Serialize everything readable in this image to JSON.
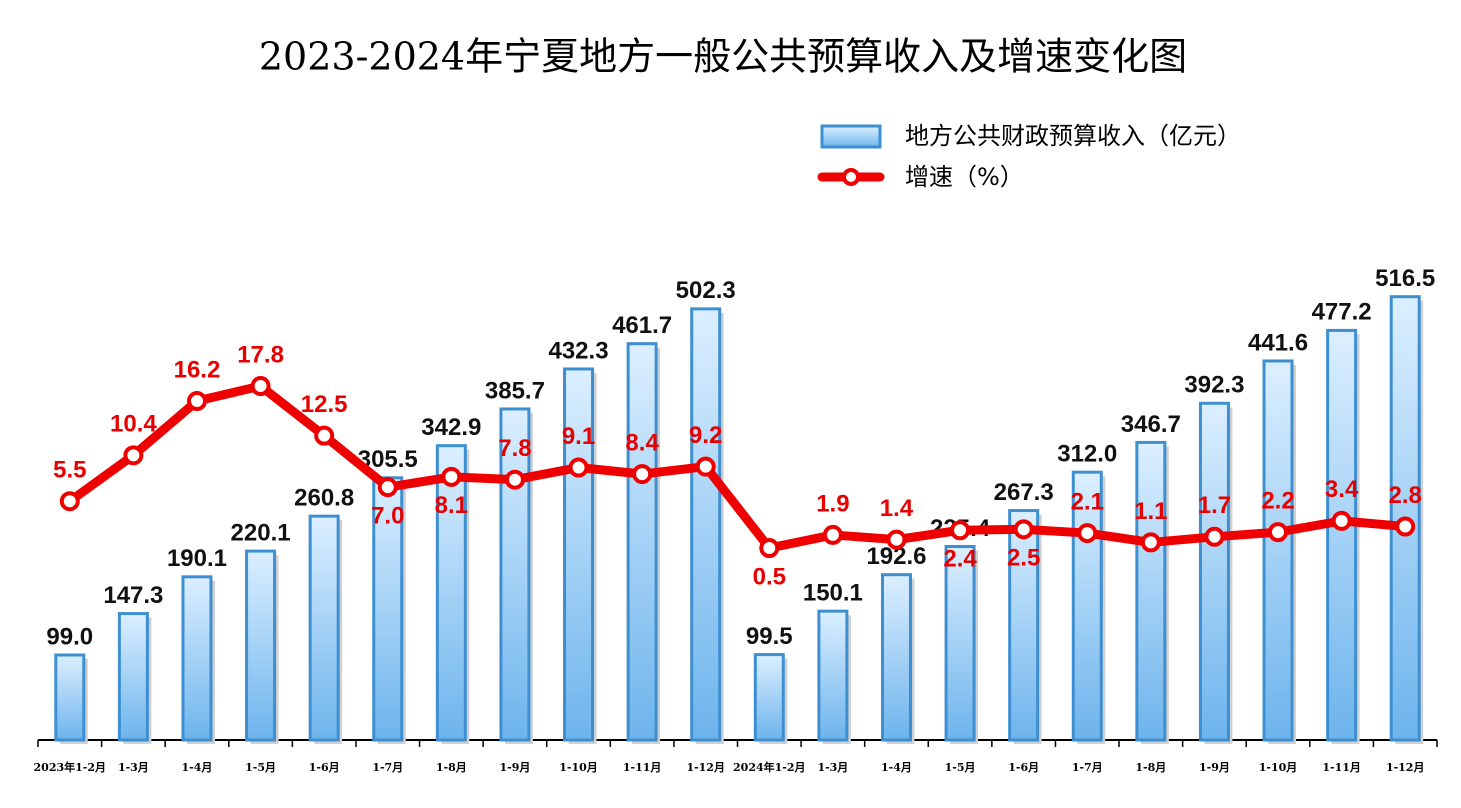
{
  "chart_data": {
    "type": "bar-line",
    "title": "2023-2024年宁夏地方一般公共预算收入及增速变化图",
    "categories": [
      "2023年1-2月",
      "1-3月",
      "1-4月",
      "1-5月",
      "1-6月",
      "1-7月",
      "1-8月",
      "1-9月",
      "1-10月",
      "1-11月",
      "1-12月",
      "2024年1-2月",
      "1-3月",
      "1-4月",
      "1-5月",
      "1-6月",
      "1-7月",
      "1-8月",
      "1-9月",
      "1-10月",
      "1-11月",
      "1-12月"
    ],
    "series": [
      {
        "name": "地方公共财政预算收入（亿元）",
        "type": "bar",
        "color": "#3d8fd1",
        "values": [
          99.0,
          147.3,
          190.1,
          220.1,
          260.8,
          305.5,
          342.9,
          385.7,
          432.3,
          461.7,
          502.3,
          99.5,
          150.1,
          192.6,
          225.4,
          267.3,
          312.0,
          346.7,
          392.3,
          441.6,
          477.2,
          516.5
        ],
        "value_labels": [
          "99.0",
          "147.3",
          "190.1",
          "220.1",
          "260.8",
          "305.5",
          "342.9",
          "385.7",
          "432.3",
          "461.7",
          "502.3",
          "99.5",
          "150.1",
          "192.6",
          "225.4",
          "267.3",
          "312.0",
          "346.7",
          "392.3",
          "441.6",
          "477.2",
          "516.5"
        ]
      },
      {
        "name": "增速（%）",
        "type": "line",
        "axis": "y2",
        "color": "#ee0000",
        "values": [
          5.5,
          10.4,
          16.2,
          17.8,
          12.5,
          7.0,
          8.1,
          7.8,
          9.1,
          8.4,
          9.2,
          0.5,
          1.9,
          1.4,
          2.4,
          2.5,
          2.1,
          1.1,
          1.7,
          2.2,
          3.4,
          2.8
        ],
        "value_labels": [
          "5.5",
          "10.4",
          "16.2",
          "17.8",
          "12.5",
          "7.0",
          "8.1",
          "7.8",
          "9.1",
          "8.4",
          "9.2",
          "0.5",
          "1.9",
          "1.4",
          "2.4",
          "2.5",
          "2.1",
          "1.1",
          "1.7",
          "2.2",
          "3.4",
          "2.8"
        ]
      }
    ],
    "ylim": [
      0,
      600
    ],
    "y2lim": [
      -20,
      35
    ]
  }
}
